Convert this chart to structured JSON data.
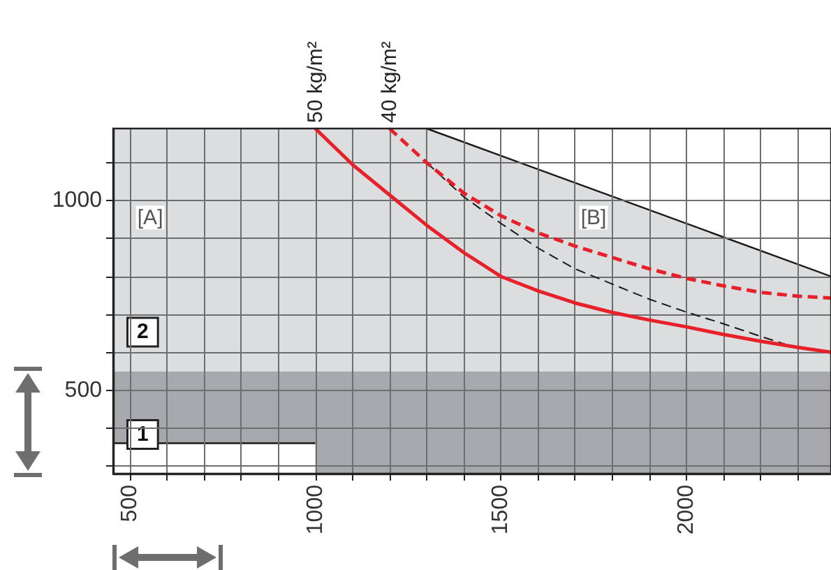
{
  "chart_data": {
    "type": "line",
    "xlim": [
      455,
      2390
    ],
    "ylim": [
      280,
      1190
    ],
    "xticks": [
      500,
      {
        "value": 600,
        "label": null
      },
      {
        "value": 700,
        "label": null
      },
      {
        "value": 800,
        "label": null
      },
      {
        "value": 900,
        "label": null
      },
      1000,
      {
        "value": 1100,
        "label": null
      },
      {
        "value": 1200,
        "label": null
      },
      {
        "value": 1300,
        "label": null
      },
      {
        "value": 1400,
        "label": null
      },
      1500,
      {
        "value": 1600,
        "label": null
      },
      {
        "value": 1700,
        "label": null
      },
      {
        "value": 1800,
        "label": null
      },
      {
        "value": 1900,
        "label": null
      },
      2000,
      {
        "value": 2100,
        "label": null
      },
      {
        "value": 2200,
        "label": null
      },
      {
        "value": 2300,
        "label": null
      }
    ],
    "yticks": [
      {
        "value": 300,
        "label": null
      },
      {
        "value": 400,
        "label": null
      },
      500,
      {
        "value": 600,
        "label": null
      },
      {
        "value": 700,
        "label": null
      },
      {
        "value": 800,
        "label": null
      },
      {
        "value": 900,
        "label": null
      },
      1000,
      {
        "value": 1100,
        "label": null
      }
    ],
    "grid": true,
    "legend": false,
    "bands": [
      {
        "axis": "y",
        "from": 280,
        "to": 550,
        "label": "1",
        "color": "#a7a8ab"
      },
      {
        "axis": "y",
        "from": 550,
        "to": 1190,
        "label": "2",
        "color": "#dcdddf"
      }
    ],
    "annotations": [
      {
        "text": "[A]",
        "x": 555,
        "y": 955
      },
      {
        "text": "[B]",
        "x": 1750,
        "y": 955
      }
    ],
    "series": [
      {
        "type": "area",
        "color": "#1a1a1a",
        "x": [
          1300,
          2390
        ],
        "values": [
          1190,
          800
        ]
      },
      {
        "type": "area",
        "color": "#1a1a1a",
        "x": [
          455,
          1000
        ],
        "values": [
          360,
          360
        ]
      },
      {
        "color": "#1a1a1a",
        "line_style": "dashed",
        "x": [
          1300,
          1400,
          1500,
          1600,
          1700,
          1800,
          1900,
          2000,
          2100,
          2200,
          2270
        ],
        "values": [
          1100,
          1010,
          940,
          875,
          820,
          780,
          740,
          706,
          675,
          642,
          620
        ]
      },
      {
        "name": "50 kg/m²",
        "color": "#e8202a",
        "line_style": "solid",
        "x": [
          1000,
          1100,
          1200,
          1300,
          1400,
          1500,
          1600,
          1700,
          1800,
          1900,
          2000,
          2100,
          2200,
          2300,
          2390
        ],
        "values": [
          1190,
          1095,
          1015,
          935,
          863,
          800,
          762,
          730,
          705,
          685,
          667,
          647,
          629,
          613,
          600
        ]
      },
      {
        "name": "40 kg/m²",
        "color": "#e8202a",
        "line_style": "dashed",
        "x": [
          1200,
          1300,
          1400,
          1500,
          1600,
          1700,
          1800,
          1900,
          2000,
          2100,
          2200,
          2300,
          2390
        ],
        "values": [
          1190,
          1100,
          1020,
          960,
          915,
          880,
          850,
          820,
          795,
          775,
          758,
          748,
          743
        ]
      }
    ]
  }
}
